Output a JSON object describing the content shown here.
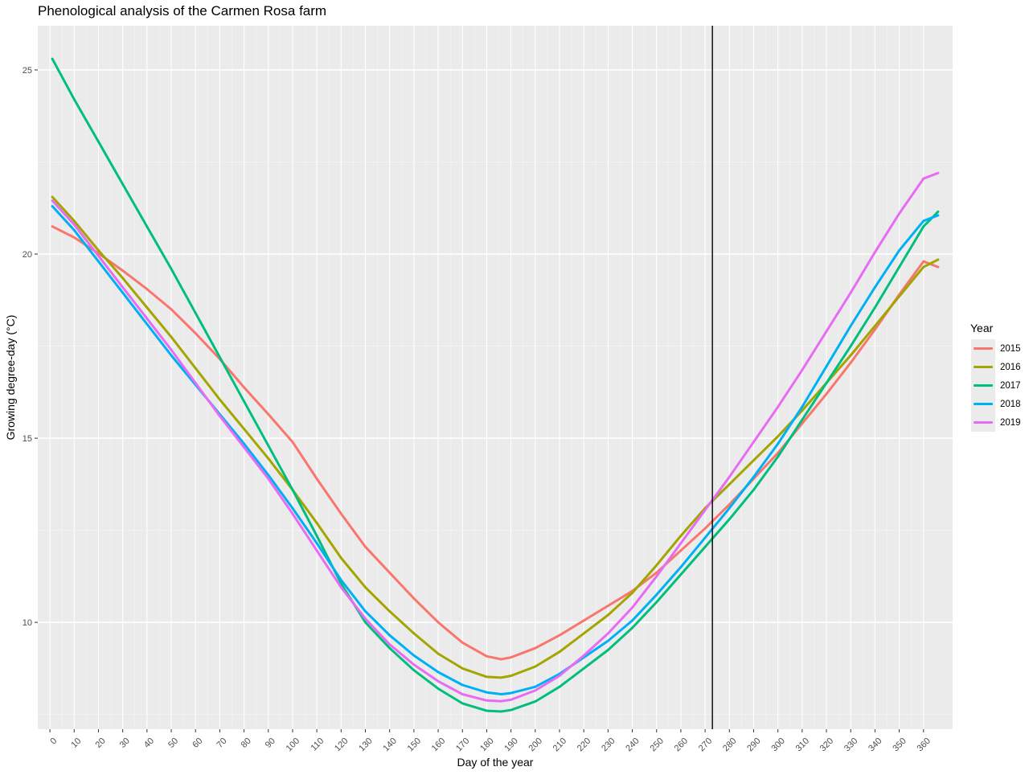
{
  "chart_data": {
    "type": "line",
    "title": "Phenological analysis of the Carmen Rosa farm",
    "xlabel": "Day of the year",
    "ylabel": "Growing degree-day (°C)",
    "xlim": [
      -5,
      372
    ],
    "ylim": [
      7.1,
      26.2
    ],
    "x_ticks": [
      0,
      10,
      20,
      30,
      40,
      50,
      60,
      70,
      80,
      90,
      100,
      110,
      120,
      130,
      140,
      150,
      160,
      170,
      180,
      190,
      200,
      210,
      220,
      230,
      240,
      250,
      260,
      270,
      280,
      290,
      300,
      310,
      320,
      330,
      340,
      350,
      360
    ],
    "y_ticks": [
      10,
      15,
      20,
      25
    ],
    "grid": true,
    "legend_title": "Year",
    "legend_position": "right",
    "vline_x": 273,
    "vline_color": "#000000",
    "x": [
      1,
      10,
      20,
      30,
      40,
      50,
      60,
      70,
      80,
      90,
      100,
      110,
      120,
      130,
      140,
      150,
      160,
      170,
      180,
      186,
      190,
      200,
      210,
      220,
      230,
      240,
      250,
      260,
      270,
      280,
      290,
      300,
      310,
      320,
      330,
      340,
      350,
      360,
      366
    ],
    "series": [
      {
        "name": "2015",
        "color": "#F8766D",
        "values": [
          20.75,
          20.45,
          20.02,
          19.55,
          19.05,
          18.5,
          17.85,
          17.15,
          16.38,
          15.65,
          14.9,
          13.9,
          12.95,
          12.05,
          11.35,
          10.65,
          10.0,
          9.45,
          9.08,
          9.0,
          9.05,
          9.3,
          9.65,
          10.05,
          10.45,
          10.85,
          11.35,
          11.95,
          12.55,
          13.2,
          13.9,
          14.6,
          15.4,
          16.2,
          17.05,
          17.95,
          18.9,
          19.8,
          19.65
        ]
      },
      {
        "name": "2016",
        "color": "#A3A500",
        "values": [
          21.55,
          20.9,
          20.1,
          19.35,
          18.55,
          17.75,
          16.9,
          16.05,
          15.25,
          14.45,
          13.6,
          12.7,
          11.75,
          10.95,
          10.3,
          9.7,
          9.15,
          8.75,
          8.52,
          8.5,
          8.55,
          8.8,
          9.2,
          9.7,
          10.2,
          10.8,
          11.55,
          12.35,
          13.1,
          13.75,
          14.4,
          15.05,
          15.75,
          16.5,
          17.25,
          18.05,
          18.85,
          19.65,
          19.85
        ]
      },
      {
        "name": "2017",
        "color": "#00BF7D",
        "values": [
          25.3,
          24.2,
          23.05,
          21.9,
          20.75,
          19.6,
          18.4,
          17.2,
          16.0,
          14.8,
          13.6,
          12.35,
          11.05,
          10.0,
          9.3,
          8.7,
          8.2,
          7.8,
          7.6,
          7.58,
          7.62,
          7.85,
          8.25,
          8.75,
          9.25,
          9.85,
          10.55,
          11.3,
          12.05,
          12.8,
          13.6,
          14.5,
          15.5,
          16.5,
          17.5,
          18.55,
          19.65,
          20.75,
          21.15
        ]
      },
      {
        "name": "2018",
        "color": "#00B0F6",
        "values": [
          21.3,
          20.65,
          19.8,
          18.95,
          18.1,
          17.25,
          16.45,
          15.65,
          14.85,
          14.0,
          13.1,
          12.15,
          11.15,
          10.3,
          9.65,
          9.1,
          8.65,
          8.3,
          8.1,
          8.05,
          8.08,
          8.25,
          8.6,
          9.05,
          9.5,
          10.05,
          10.75,
          11.5,
          12.3,
          13.1,
          13.95,
          14.85,
          15.85,
          16.95,
          18.05,
          19.1,
          20.1,
          20.9,
          21.05
        ]
      },
      {
        "name": "2019",
        "color": "#E76BF3",
        "values": [
          21.45,
          20.8,
          19.95,
          19.1,
          18.25,
          17.4,
          16.5,
          15.6,
          14.75,
          13.9,
          12.95,
          11.95,
          10.95,
          10.1,
          9.4,
          8.85,
          8.4,
          8.05,
          7.88,
          7.86,
          7.9,
          8.15,
          8.55,
          9.1,
          9.7,
          10.4,
          11.25,
          12.15,
          13.05,
          13.95,
          14.9,
          15.85,
          16.85,
          17.9,
          18.95,
          20.05,
          21.1,
          22.05,
          22.2
        ]
      }
    ]
  }
}
